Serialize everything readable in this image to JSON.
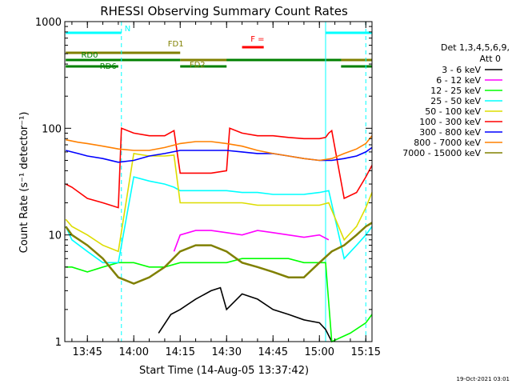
{
  "chart_data": {
    "type": "line",
    "title": "RHESSI Observing Summary Count Rates",
    "xlabel": "Start Time (14-Aug-05 13:37:42)",
    "ylabel": "Count Rate (s⁻¹ detector⁻¹)",
    "y_scale": "log",
    "ylim": [
      1,
      1000
    ],
    "xlim": [
      "13:37:42",
      "15:17:00"
    ],
    "x_ticks": [
      "13:45",
      "14:00",
      "14:15",
      "14:30",
      "14:45",
      "15:00",
      "15:15"
    ],
    "y_ticks": [
      "1",
      "10",
      "100",
      "1000"
    ],
    "legend": {
      "placement": "right",
      "header": [
        "Det 1,3,4,5,6,9,",
        "Att 0"
      ]
    },
    "timestamp": "19-Oct-2021 03:01",
    "series": [
      {
        "name": "3 - 6 keV",
        "color": "#000000",
        "x": [
          "14:08",
          "14:12",
          "14:15",
          "14:20",
          "14:25",
          "14:28",
          "14:30",
          "14:35",
          "14:40",
          "14:45",
          "14:50",
          "14:55",
          "15:00",
          "15:02",
          "15:04"
        ],
        "values": [
          1.2,
          1.8,
          2.0,
          2.5,
          3.0,
          3.2,
          2.0,
          2.8,
          2.5,
          2.0,
          1.8,
          1.6,
          1.5,
          1.3,
          1.0
        ]
      },
      {
        "name": "6 - 12 keV",
        "color": "#ff00ff",
        "x": [
          "14:13",
          "14:15",
          "14:20",
          "14:25",
          "14:30",
          "14:35",
          "14:40",
          "14:45",
          "14:50",
          "14:55",
          "15:00",
          "15:03"
        ],
        "values": [
          7,
          10,
          11,
          11,
          10.5,
          10,
          11,
          10.5,
          10,
          9.5,
          10,
          9
        ]
      },
      {
        "name": "12 - 25 keV",
        "color": "#00ff00",
        "x": [
          "13:38",
          "13:40",
          "13:45",
          "13:50",
          "13:55",
          "14:00",
          "14:05",
          "14:10",
          "14:15",
          "14:20",
          "14:25",
          "14:30",
          "14:35",
          "14:40",
          "14:45",
          "14:50",
          "14:55",
          "15:00",
          "15:02",
          "15:04",
          "15:10",
          "15:15",
          "15:17"
        ],
        "values": [
          5,
          5,
          4.5,
          5,
          5.5,
          5.5,
          5,
          5,
          5.5,
          5.5,
          5.5,
          5.5,
          6,
          6,
          6,
          6,
          5.5,
          5.5,
          5.5,
          1.0,
          1.2,
          1.5,
          1.8
        ]
      },
      {
        "name": "25 - 50 keV",
        "color": "#00ffff",
        "x": [
          "13:38",
          "13:40",
          "13:45",
          "13:50",
          "13:55",
          "14:00",
          "14:05",
          "14:10",
          "14:13",
          "14:15",
          "14:20",
          "14:25",
          "14:30",
          "14:35",
          "14:40",
          "14:45",
          "14:50",
          "14:55",
          "15:00",
          "15:03",
          "15:08",
          "15:12",
          "15:15",
          "15:17"
        ],
        "values": [
          12,
          9,
          7,
          5.5,
          5.5,
          35,
          32,
          30,
          28,
          26,
          26,
          26,
          26,
          25,
          25,
          24,
          24,
          24,
          25,
          26,
          6,
          8,
          10,
          12
        ]
      },
      {
        "name": "50 - 100 keV",
        "color": "#dddd00",
        "x": [
          "13:38",
          "13:40",
          "13:45",
          "13:50",
          "13:55",
          "14:00",
          "14:05",
          "14:10",
          "14:13",
          "14:15",
          "14:20",
          "14:25",
          "14:30",
          "14:35",
          "14:40",
          "14:45",
          "14:50",
          "14:55",
          "15:00",
          "15:03",
          "15:08",
          "15:12",
          "15:15",
          "15:17"
        ],
        "values": [
          14,
          12,
          10,
          8,
          7,
          58,
          55,
          55,
          56,
          20,
          20,
          20,
          20,
          20,
          19,
          19,
          19,
          19,
          19,
          20,
          9,
          12,
          18,
          25
        ]
      },
      {
        "name": "100 - 300 keV",
        "color": "#ff0000",
        "x": [
          "13:38",
          "13:40",
          "13:45",
          "13:50",
          "13:55",
          "13:56",
          "14:00",
          "14:05",
          "14:10",
          "14:13",
          "14:15",
          "14:20",
          "14:25",
          "14:30",
          "14:31",
          "14:35",
          "14:40",
          "14:45",
          "14:50",
          "14:55",
          "15:00",
          "15:02",
          "15:03",
          "15:04",
          "15:08",
          "15:12",
          "15:15",
          "15:17"
        ],
        "values": [
          30,
          28,
          22,
          20,
          18,
          100,
          90,
          85,
          85,
          95,
          38,
          38,
          38,
          40,
          100,
          90,
          85,
          85,
          82,
          80,
          80,
          82,
          90,
          95,
          22,
          25,
          35,
          45
        ]
      },
      {
        "name": "300 - 800 keV",
        "color": "#0000ff",
        "x": [
          "13:38",
          "13:42",
          "13:45",
          "13:50",
          "13:55",
          "14:00",
          "14:05",
          "14:10",
          "14:15",
          "14:20",
          "14:25",
          "14:30",
          "14:35",
          "14:40",
          "14:45",
          "14:50",
          "14:55",
          "15:00",
          "15:04",
          "15:08",
          "15:12",
          "15:15",
          "15:17"
        ],
        "values": [
          62,
          58,
          55,
          52,
          48,
          50,
          55,
          58,
          62,
          62,
          62,
          62,
          60,
          58,
          58,
          55,
          52,
          50,
          50,
          52,
          55,
          60,
          66
        ]
      },
      {
        "name": "800 - 7000 keV",
        "color": "#ff8000",
        "x": [
          "13:38",
          "13:42",
          "13:45",
          "13:50",
          "13:55",
          "14:00",
          "14:05",
          "14:10",
          "14:15",
          "14:20",
          "14:25",
          "14:30",
          "14:35",
          "14:40",
          "14:45",
          "14:50",
          "14:55",
          "15:00",
          "15:04",
          "15:08",
          "15:12",
          "15:15",
          "15:17"
        ],
        "values": [
          78,
          74,
          72,
          68,
          64,
          62,
          62,
          66,
          72,
          75,
          75,
          72,
          68,
          62,
          58,
          55,
          52,
          50,
          52,
          58,
          64,
          72,
          85
        ]
      },
      {
        "name": "7000 - 15000 keV",
        "color": "#808000",
        "x": [
          "13:38",
          "13:40",
          "13:45",
          "13:50",
          "13:55",
          "14:00",
          "14:05",
          "14:10",
          "14:15",
          "14:20",
          "14:25",
          "14:30",
          "14:35",
          "14:40",
          "14:45",
          "14:50",
          "14:55",
          "15:00",
          "15:04",
          "15:08",
          "15:12",
          "15:15",
          "15:17"
        ],
        "values": [
          12,
          10,
          8,
          6,
          4,
          3.5,
          4,
          5,
          7,
          8,
          8,
          7,
          5.5,
          5,
          4.5,
          4,
          4,
          5.5,
          7,
          8,
          10,
          12,
          13
        ]
      }
    ],
    "annotations": {
      "levels": [
        {
          "label": "N",
          "color": "#00ffff"
        },
        {
          "label": "F =",
          "color": "#ff0000"
        },
        {
          "label": "FD1",
          "color": "#808000"
        },
        {
          "label": "FD2",
          "color": "#808000"
        },
        {
          "label": "RD0",
          "color": "#008000"
        },
        {
          "label": "RD6",
          "color": "#008000"
        }
      ],
      "bars": [
        {
          "level": 0,
          "x": [
            "13:38",
            "13:56"
          ]
        },
        {
          "level": 0,
          "x": [
            "15:02",
            "15:17"
          ]
        },
        {
          "level": 1,
          "x": [
            "14:35",
            "14:42"
          ]
        },
        {
          "level": 2,
          "x": [
            "13:38",
            "14:15"
          ]
        },
        {
          "level": 3,
          "x": [
            "14:15",
            "15:17"
          ]
        },
        {
          "level": 4,
          "x": [
            "13:38",
            "14:15"
          ]
        },
        {
          "level": 4,
          "x": [
            "14:30",
            "15:07"
          ]
        },
        {
          "level": 5,
          "x": [
            "13:38",
            "13:55"
          ]
        },
        {
          "level": 5,
          "x": [
            "14:15",
            "14:30"
          ]
        },
        {
          "level": 5,
          "x": [
            "15:07",
            "15:17"
          ]
        }
      ],
      "vlines": [
        {
          "x": "13:56",
          "style": "dashed",
          "color": "#00ffff"
        },
        {
          "x": "15:02",
          "style": "solid",
          "color": "#00ffff"
        },
        {
          "x": "15:15",
          "style": "dashed",
          "color": "#00ffff"
        }
      ]
    }
  }
}
